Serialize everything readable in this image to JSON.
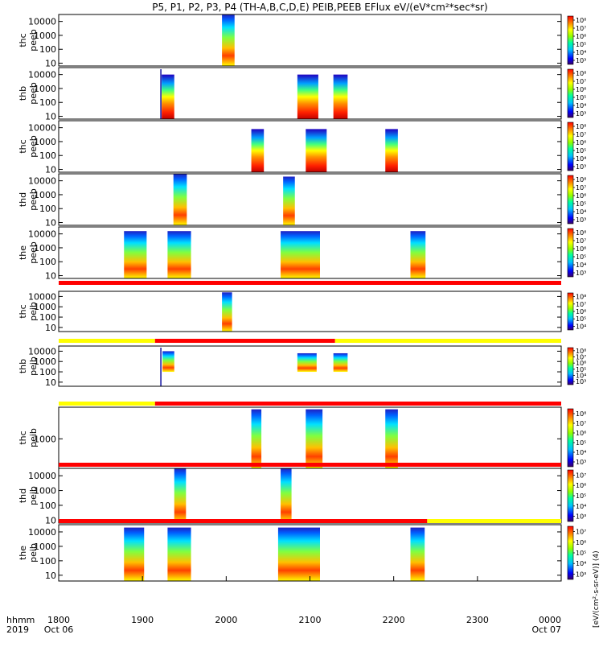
{
  "chart_data": {
    "type": "heatmap",
    "title": "P5, P1, P2, P3, P4 (TH-A,B,C,D,E) PEIB,PEEB EFlux eV/(eV*cm²*sec*sr)",
    "colorbar_unit": "[eV/(cm²-s-sr-eV)] (4)",
    "x_axis": {
      "range": [
        "1800",
        "0000"
      ],
      "units_label": [
        "hhmm",
        "2019"
      ],
      "ticks": [
        {
          "value": 0,
          "label": "1800",
          "sub": "Oct 06"
        },
        {
          "value": 1,
          "label": "1900",
          "sub": ""
        },
        {
          "value": 2,
          "label": "2000",
          "sub": ""
        },
        {
          "value": 3,
          "label": "2100",
          "sub": ""
        },
        {
          "value": 4,
          "label": "2200",
          "sub": ""
        },
        {
          "value": 5,
          "label": "2300",
          "sub": ""
        },
        {
          "value": 6,
          "label": "0000",
          "sub": "Oct 07"
        }
      ]
    },
    "y_axis": {
      "scale": "log",
      "range": [
        5,
        40000
      ]
    },
    "panels": [
      {
        "label": [
          "thc",
          "peeb"
        ],
        "yticks": [
          "10",
          "100",
          "1000",
          "10000"
        ],
        "ticklogs": [
          1,
          2,
          3,
          4
        ],
        "ylim_log": [
          0.8,
          4.5
        ],
        "colorbar": {
          "ticks": [
            "10³",
            "10⁴",
            "10⁵",
            "10⁶",
            "10⁷",
            "10⁸"
          ]
        },
        "intervals": [
          {
            "start": 1.95,
            "end": 2.1,
            "low": 0.8,
            "high": 4.5,
            "style": "mid"
          }
        ],
        "markers": []
      },
      {
        "label": [
          "thb",
          "peeb"
        ],
        "yticks": [
          "10",
          "100",
          "1000",
          "10000"
        ],
        "ticklogs": [
          1,
          2,
          3,
          4
        ],
        "ylim_log": [
          0.8,
          4.5
        ],
        "colorbar": {
          "ticks": [
            "10³",
            "10⁴",
            "10⁵",
            "10⁶",
            "10⁷",
            "10⁸"
          ]
        },
        "intervals": [
          {
            "start": 1.23,
            "end": 1.38,
            "low": 0.8,
            "high": 4.0,
            "style": "inverted"
          },
          {
            "start": 2.85,
            "end": 3.1,
            "low": 0.8,
            "high": 4.0,
            "style": "inverted"
          },
          {
            "start": 3.28,
            "end": 3.45,
            "low": 0.8,
            "high": 4.0,
            "style": "inverted"
          }
        ],
        "markers": [
          {
            "x": 1.22,
            "kind": "spike"
          }
        ]
      },
      {
        "label": [
          "thc",
          "peeb"
        ],
        "yticks": [
          "10",
          "100",
          "1000",
          "10000"
        ],
        "ticklogs": [
          1,
          2,
          3,
          4
        ],
        "ylim_log": [
          0.8,
          4.5
        ],
        "colorbar": {
          "ticks": [
            "10³",
            "10⁴",
            "10⁵",
            "10⁶",
            "10⁷",
            "10⁸"
          ]
        },
        "intervals": [
          {
            "start": 2.3,
            "end": 2.45,
            "low": 0.8,
            "high": 3.9,
            "style": "inverted"
          },
          {
            "start": 2.95,
            "end": 3.2,
            "low": 0.8,
            "high": 3.9,
            "style": "inverted"
          },
          {
            "start": 3.9,
            "end": 4.05,
            "low": 0.8,
            "high": 3.9,
            "style": "inverted"
          }
        ],
        "markers": []
      },
      {
        "label": [
          "thd",
          "peeb"
        ],
        "yticks": [
          "10",
          "100",
          "1000",
          "10000"
        ],
        "ticklogs": [
          1,
          2,
          3,
          4
        ],
        "ylim_log": [
          0.8,
          4.5
        ],
        "colorbar": {
          "ticks": [
            "10³",
            "10⁴",
            "10⁵",
            "10⁶",
            "10⁷",
            "10⁸"
          ]
        },
        "intervals": [
          {
            "start": 1.37,
            "end": 1.53,
            "low": 0.8,
            "high": 4.5,
            "style": "mid"
          },
          {
            "start": 2.68,
            "end": 2.82,
            "low": 0.8,
            "high": 4.3,
            "style": "mid"
          }
        ],
        "markers": []
      },
      {
        "label": [
          "the",
          "peeb"
        ],
        "yticks": [
          "10",
          "100",
          "1000",
          "10000"
        ],
        "ticklogs": [
          1,
          2,
          3,
          4
        ],
        "ylim_log": [
          0.8,
          4.5
        ],
        "colorbar": {
          "ticks": [
            "10³",
            "10⁴",
            "10⁵",
            "10⁶",
            "10⁷",
            "10⁸"
          ]
        },
        "intervals": [
          {
            "start": 0.78,
            "end": 1.05,
            "low": 0.8,
            "high": 4.2,
            "style": "mid"
          },
          {
            "start": 1.3,
            "end": 1.58,
            "low": 0.8,
            "high": 4.2,
            "style": "mid"
          },
          {
            "start": 2.65,
            "end": 3.12,
            "low": 0.8,
            "high": 4.2,
            "style": "mid"
          },
          {
            "start": 4.2,
            "end": 4.38,
            "low": 0.8,
            "high": 4.2,
            "style": "mid"
          }
        ],
        "markers": []
      },
      {
        "label": [
          "thc",
          "peib"
        ],
        "yticks": [
          "10",
          "100",
          "1000",
          "10000"
        ],
        "ticklogs": [
          1,
          2,
          3,
          4
        ],
        "ylim_log": [
          0.6,
          4.5
        ],
        "colorbar": {
          "ticks": [
            "10⁴",
            "10⁵",
            "10⁶",
            "10⁷",
            "10⁸"
          ]
        },
        "bar": [
          {
            "start": 0,
            "end": 6,
            "color": "#ff0000"
          }
        ],
        "intervals": [
          {
            "start": 1.95,
            "end": 2.07,
            "low": 0.6,
            "high": 4.4,
            "style": "mid"
          }
        ],
        "markers": []
      },
      {
        "label": [
          "thb",
          "peib"
        ],
        "yticks": [
          "10",
          "100",
          "1000",
          "10000"
        ],
        "ticklogs": [
          1,
          2,
          3,
          4
        ],
        "ylim_log": [
          0.6,
          4.5
        ],
        "colorbar": {
          "ticks": [
            "10³",
            "10⁴",
            "10⁵",
            "10⁶",
            "10⁷",
            "10⁸"
          ]
        },
        "bar": [
          {
            "start": 0,
            "end": 1.15,
            "color": "#ffff00"
          },
          {
            "start": 1.15,
            "end": 3.3,
            "color": "#ff0000"
          },
          {
            "start": 3.3,
            "end": 6,
            "color": "#ffff00"
          }
        ],
        "intervals": [
          {
            "start": 1.24,
            "end": 1.38,
            "low": 2.0,
            "high": 4.0,
            "style": "mid"
          },
          {
            "start": 2.85,
            "end": 3.08,
            "low": 2.0,
            "high": 3.8,
            "style": "mid"
          },
          {
            "start": 3.28,
            "end": 3.45,
            "low": 2.0,
            "high": 3.8,
            "style": "mid"
          }
        ],
        "markers": [
          {
            "x": 1.22,
            "kind": "spike"
          }
        ]
      },
      {
        "label": [
          "thc",
          "peib"
        ],
        "yticks": [
          "1000"
        ],
        "ticklogs": [
          3
        ],
        "ylim_log": [
          1.6,
          4.5
        ],
        "colorbar": {
          "ticks": [
            "10³",
            "10⁴",
            "10⁵",
            "10⁶",
            "10⁷",
            "10⁸"
          ]
        },
        "bar": [
          {
            "start": 0,
            "end": 1.15,
            "color": "#ffff00"
          },
          {
            "start": 1.15,
            "end": 6,
            "color": "#ff0000"
          }
        ],
        "intervals": [
          {
            "start": 2.3,
            "end": 2.42,
            "low": 1.6,
            "high": 4.4,
            "style": "mid"
          },
          {
            "start": 2.95,
            "end": 3.15,
            "low": 1.6,
            "high": 4.4,
            "style": "mid"
          },
          {
            "start": 3.9,
            "end": 4.05,
            "low": 1.6,
            "high": 4.4,
            "style": "mid"
          }
        ],
        "markers": []
      },
      {
        "label": [
          "thd",
          "peib"
        ],
        "yticks": [
          "10",
          "100",
          "1000",
          "10000"
        ],
        "ticklogs": [
          1,
          2,
          3,
          4
        ],
        "ylim_log": [
          0.8,
          4.5
        ],
        "colorbar": {
          "ticks": [
            "10³",
            "10⁴",
            "10⁵",
            "10⁶",
            "10⁷"
          ]
        },
        "bar": [
          {
            "start": 0,
            "end": 6,
            "color": "#ff0000"
          }
        ],
        "intervals": [
          {
            "start": 1.38,
            "end": 1.52,
            "low": 0.8,
            "high": 4.5,
            "style": "mid"
          },
          {
            "start": 2.65,
            "end": 2.78,
            "low": 0.8,
            "high": 4.5,
            "style": "mid"
          }
        ],
        "markers": []
      },
      {
        "label": [
          "the",
          "peib"
        ],
        "yticks": [
          "10",
          "100",
          "1000",
          "10000"
        ],
        "ticklogs": [
          1,
          2,
          3,
          4
        ],
        "ylim_log": [
          0.6,
          4.5
        ],
        "colorbar": {
          "ticks": [
            "10³",
            "10⁴",
            "10⁵",
            "10⁶",
            "10⁷"
          ]
        },
        "bar": [
          {
            "start": 0,
            "end": 4.4,
            "color": "#ff0000"
          },
          {
            "start": 4.4,
            "end": 6,
            "color": "#ffff00"
          }
        ],
        "intervals": [
          {
            "start": 0.78,
            "end": 1.02,
            "low": 0.6,
            "high": 4.3,
            "style": "mid"
          },
          {
            "start": 1.3,
            "end": 1.58,
            "low": 0.6,
            "high": 4.3,
            "style": "mid"
          },
          {
            "start": 2.62,
            "end": 3.12,
            "low": 0.6,
            "high": 4.3,
            "style": "mid"
          },
          {
            "start": 4.2,
            "end": 4.37,
            "low": 0.6,
            "high": 4.3,
            "style": "mid"
          }
        ],
        "markers": []
      }
    ]
  }
}
